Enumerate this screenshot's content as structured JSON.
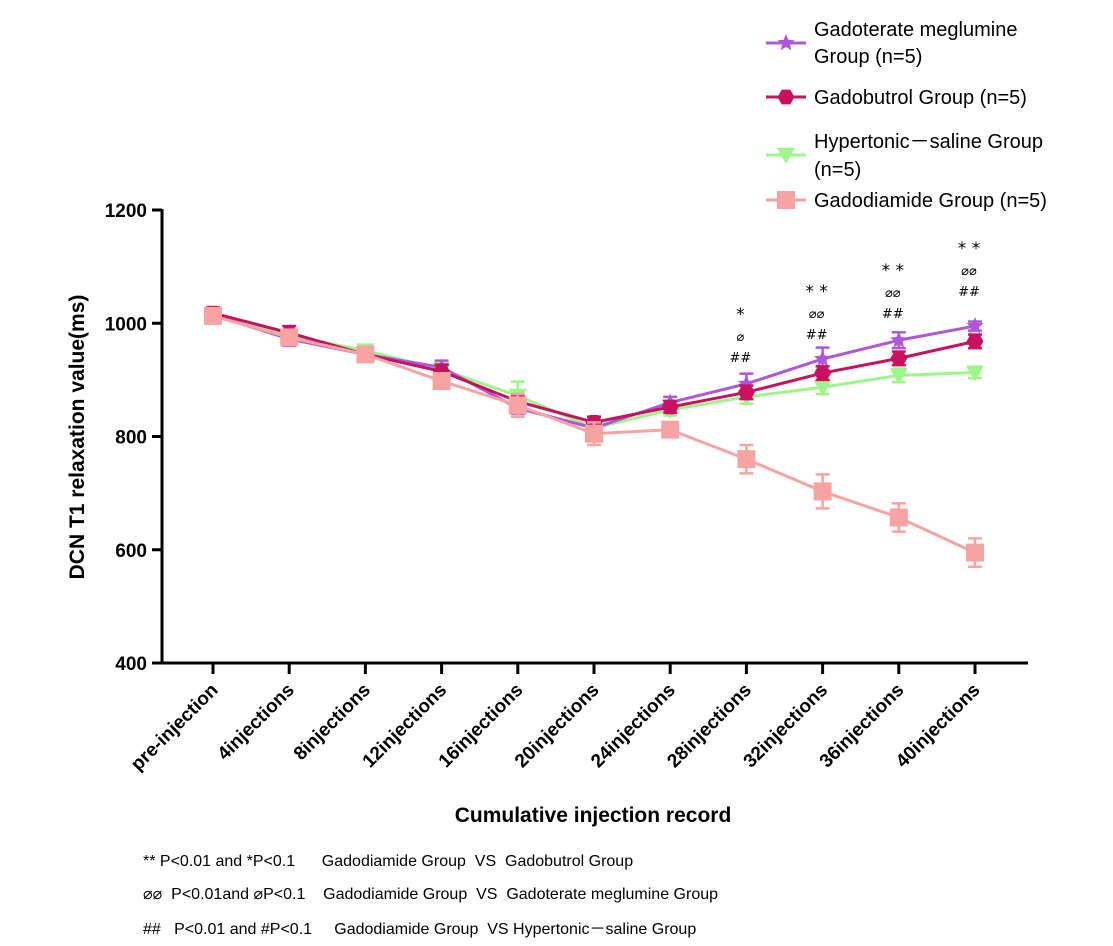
{
  "chart_data": {
    "type": "line",
    "ylabel": "DCN T1 relaxation value(ms)",
    "xlabel": "Cumulative injection record",
    "ylim": [
      400,
      1200
    ],
    "yticks": [
      "400",
      "600",
      "800",
      "1000",
      "1200"
    ],
    "yticks_values": [
      400,
      600,
      800,
      1000,
      1200
    ],
    "categories": [
      "pre-injection",
      "4injections",
      "8injections",
      "12injections",
      "16injections",
      "20injections",
      "24injections",
      "28injections",
      "32injections",
      "36injections",
      "40injections"
    ],
    "series": [
      {
        "name": "Gadoterate meglumine Group (n=5)",
        "label_line1": "Gadoterate meglumine",
        "label_line2": "Group (n=5)",
        "marker": "star",
        "color": "#B057D9",
        "values": [
          1015,
          972,
          945,
          922,
          850,
          815,
          860,
          893,
          937,
          970,
          995
        ],
        "errors": [
          10,
          12,
          8,
          12,
          10,
          10,
          10,
          18,
          20,
          14,
          8
        ]
      },
      {
        "name": "Gadobutrol Group (n=5)",
        "label_line1": "Gadobutrol Group (n=5)",
        "label_line2": "",
        "marker": "hexagon",
        "color": "#C8125F",
        "values": [
          1018,
          983,
          945,
          915,
          862,
          825,
          852,
          878,
          912,
          938,
          968
        ],
        "errors": [
          10,
          12,
          8,
          12,
          10,
          10,
          10,
          12,
          12,
          12,
          12
        ]
      },
      {
        "name": "Hypertonic－saline Group (n=5)",
        "label_line1": "Hypertonic－saline Group",
        "label_line2": "(n=5)",
        "marker": "triangle-down",
        "color": "#9EF58A",
        "values": [
          1012,
          978,
          952,
          918,
          872,
          815,
          847,
          870,
          887,
          908,
          913
        ],
        "errors": [
          10,
          10,
          10,
          12,
          25,
          15,
          10,
          12,
          12,
          12,
          10
        ]
      },
      {
        "name": "Gadodiamide Group (n=5)",
        "label_line1": "Gadodiamide Group (n=5)",
        "label_line2": "",
        "marker": "square",
        "color": "#F7A3A3",
        "values": [
          1013,
          975,
          945,
          898,
          855,
          805,
          812,
          760,
          703,
          657,
          595
        ],
        "errors": [
          10,
          12,
          10,
          12,
          20,
          20,
          10,
          25,
          30,
          25,
          25
        ]
      }
    ],
    "annotations": [
      {
        "category_index": 7,
        "lines": [
          "*",
          "⌀",
          "##"
        ]
      },
      {
        "category_index": 8,
        "lines": [
          "* *",
          "⌀⌀",
          "##"
        ]
      },
      {
        "category_index": 9,
        "lines": [
          "* *",
          "⌀⌀",
          "##"
        ]
      },
      {
        "category_index": 10,
        "lines": [
          "* *",
          "⌀⌀",
          "##"
        ]
      }
    ]
  },
  "footnotes": [
    "** P<0.01 and *P<0.1      Gadodiamide Group  VS  Gadobutrol Group",
    "⌀⌀  P<0.01and ⌀P<0.1    Gadodiamide Group  VS  Gadoterate meglumine Group",
    "##   P<0.01 and #P<0.1     Gadodiamide Group  VS Hypertonic－saline Group"
  ]
}
